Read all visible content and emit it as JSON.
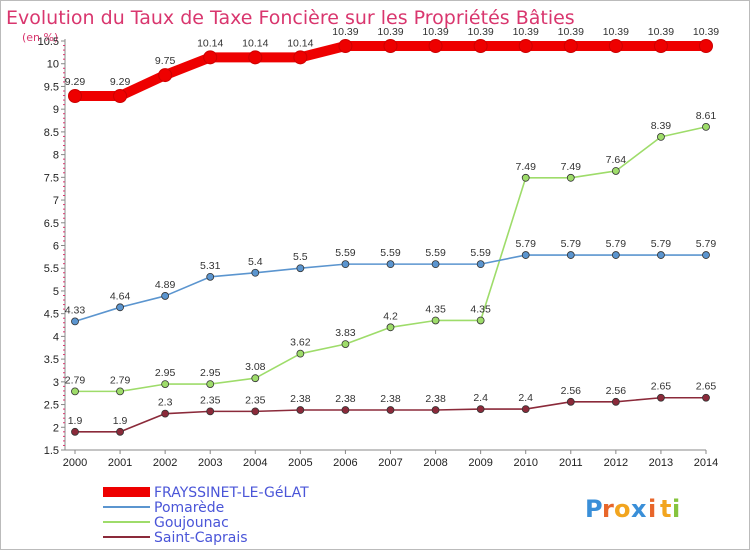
{
  "chart_data": {
    "type": "line",
    "title": "Evolution du Taux de Taxe Foncière sur les Propriétés Bâties",
    "ylabel": "(en %)",
    "xlabel": "",
    "ylim": [
      1.5,
      10.5
    ],
    "yticks": [
      "1.5",
      "2",
      "2.5",
      "3",
      "3.5",
      "4",
      "4.5",
      "5",
      "5.5",
      "6",
      "6.5",
      "7",
      "7.5",
      "8",
      "8.5",
      "9",
      "9.5",
      "10",
      "10.5"
    ],
    "categories": [
      "2000",
      "2001",
      "2002",
      "2003",
      "2004",
      "2005",
      "2006",
      "2007",
      "2008",
      "2009",
      "2010",
      "2011",
      "2012",
      "2013",
      "2014"
    ],
    "series": [
      {
        "name": "FRAYSSINET-LE-GéLAT",
        "color": "#ee0000",
        "values": [
          9.29,
          9.29,
          9.75,
          10.14,
          10.14,
          10.14,
          10.39,
          10.39,
          10.39,
          10.39,
          10.39,
          10.39,
          10.39,
          10.39,
          10.39
        ],
        "labels": [
          "9.29",
          "9.29",
          "9.75",
          "10.14",
          "10.14",
          "10.14",
          "10.39",
          "10.39",
          "10.39",
          "10.39",
          "10.39",
          "10.39",
          "10.39",
          "10.39",
          "10.39"
        ]
      },
      {
        "name": "Pomarède",
        "color": "#5b95cf",
        "values": [
          4.33,
          4.64,
          4.89,
          5.31,
          5.4,
          5.5,
          5.59,
          5.59,
          5.59,
          5.59,
          5.79,
          5.79,
          5.79,
          5.79,
          5.79
        ],
        "labels": [
          "4.33",
          "4.64",
          "4.89",
          "5.31",
          "5.4",
          "5.5",
          "5.59",
          "5.59",
          "5.59",
          "5.59",
          "5.79",
          "5.79",
          "5.79",
          "5.79",
          "5.79"
        ]
      },
      {
        "name": "Goujounac",
        "color": "#9edc6a",
        "values": [
          2.79,
          2.79,
          2.95,
          2.95,
          3.08,
          3.62,
          3.83,
          4.2,
          4.35,
          4.35,
          7.49,
          7.49,
          7.64,
          8.39,
          8.61
        ],
        "labels": [
          "2.79",
          "2.79",
          "2.95",
          "2.95",
          "3.08",
          "3.62",
          "3.83",
          "4.2",
          "4.35",
          "4.35",
          "7.49",
          "7.49",
          "7.64",
          "8.39",
          "8.61"
        ]
      },
      {
        "name": "Saint-Caprais",
        "color": "#8b2a3a",
        "values": [
          1.9,
          1.9,
          2.3,
          2.35,
          2.35,
          2.38,
          2.38,
          2.38,
          2.38,
          2.4,
          2.4,
          2.56,
          2.56,
          2.65,
          2.65
        ],
        "labels": [
          "1.9",
          "1.9",
          "2.3",
          "2.35",
          "2.35",
          "2.38",
          "2.38",
          "2.38",
          "2.38",
          "2.4",
          "2.4",
          "2.56",
          "2.56",
          "2.65",
          "2.65"
        ]
      }
    ],
    "legend_position": "bottom-left",
    "grid": false
  },
  "brand": {
    "letters": [
      "P",
      "r",
      "o",
      "x",
      "i",
      "t",
      "i"
    ],
    "colors": [
      "#3a8fd8",
      "#e8662a",
      "#f2a51f",
      "#3a8fd8",
      "#e8662a",
      "#f2a51f",
      "#86c43e"
    ]
  }
}
